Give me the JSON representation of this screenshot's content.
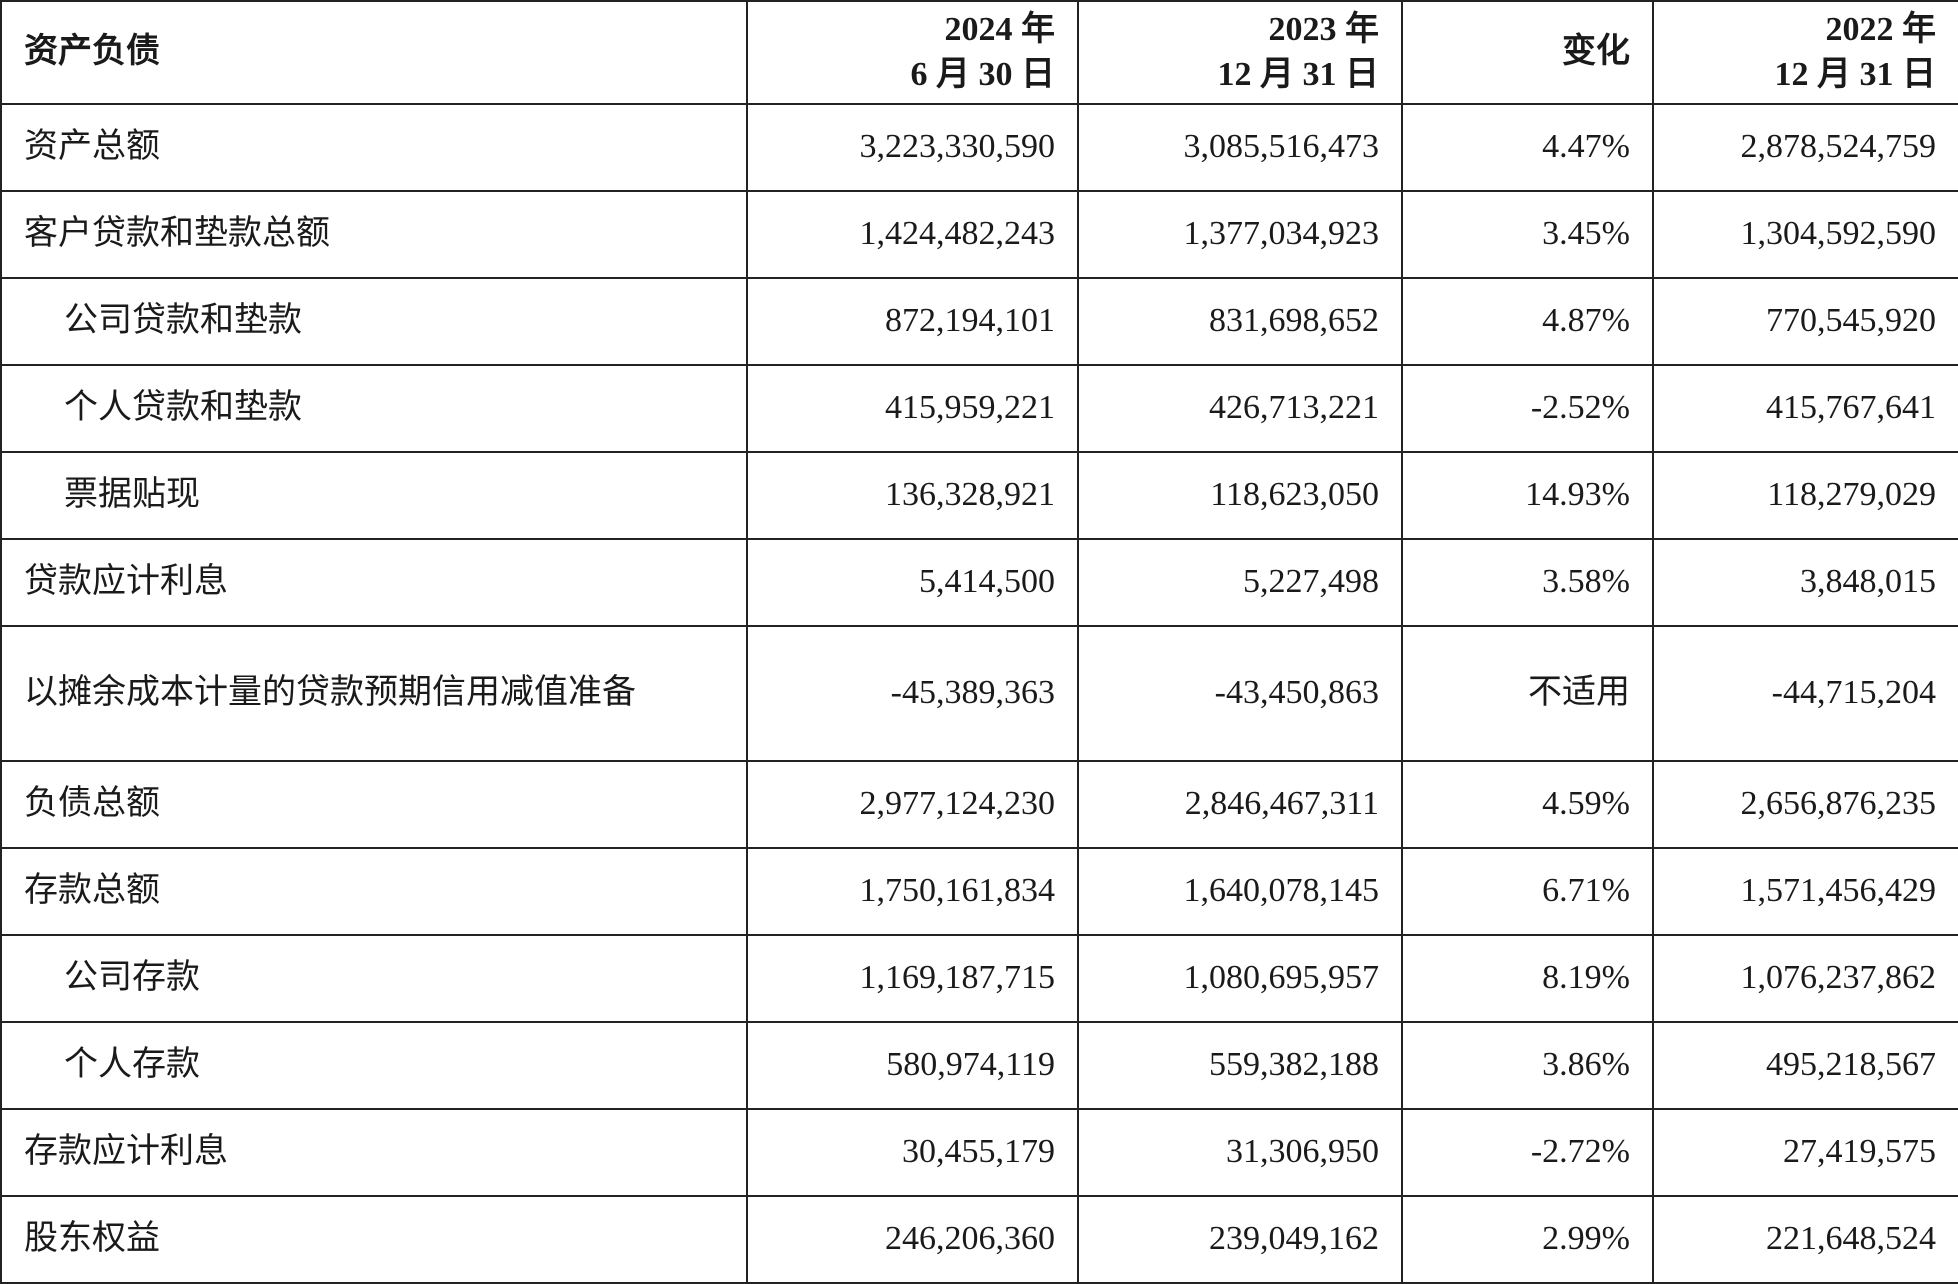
{
  "table": {
    "headers": [
      [
        "资产负债"
      ],
      [
        "2024 年",
        "6 月 30 日"
      ],
      [
        "2023 年",
        "12 月 31 日"
      ],
      [
        "变化"
      ],
      [
        "2022 年",
        "12 月 31 日"
      ]
    ],
    "rows": [
      [
        "资产总额",
        "3,223,330,590",
        "3,085,516,473",
        "4.47%",
        "2,878,524,759"
      ],
      [
        "客户贷款和垫款总额",
        "1,424,482,243",
        "1,377,034,923",
        "3.45%",
        "1,304,592,590"
      ],
      [
        "公司贷款和垫款",
        "872,194,101",
        "831,698,652",
        "4.87%",
        "770,545,920"
      ],
      [
        "个人贷款和垫款",
        "415,959,221",
        "426,713,221",
        "-2.52%",
        "415,767,641"
      ],
      [
        "票据贴现",
        "136,328,921",
        "118,623,050",
        "14.93%",
        "118,279,029"
      ],
      [
        "贷款应计利息",
        "5,414,500",
        "5,227,498",
        "3.58%",
        "3,848,015"
      ],
      [
        "以摊余成本计量的贷款预期信用减值准备",
        "-45,389,363",
        "-43,450,863",
        "不适用",
        "-44,715,204"
      ],
      [
        "负债总额",
        "2,977,124,230",
        "2,846,467,311",
        "4.59%",
        "2,656,876,235"
      ],
      [
        "存款总额",
        "1,750,161,834",
        "1,640,078,145",
        "6.71%",
        "1,571,456,429"
      ],
      [
        "公司存款",
        "1,169,187,715",
        "1,080,695,957",
        "8.19%",
        "1,076,237,862"
      ],
      [
        "个人存款",
        "580,974,119",
        "559,382,188",
        "3.86%",
        "495,218,567"
      ],
      [
        "存款应计利息",
        "30,455,179",
        "31,306,950",
        "-2.72%",
        "27,419,575"
      ],
      [
        "股东权益",
        "246,206,360",
        "239,049,162",
        "2.99%",
        "221,648,524"
      ]
    ]
  }
}
